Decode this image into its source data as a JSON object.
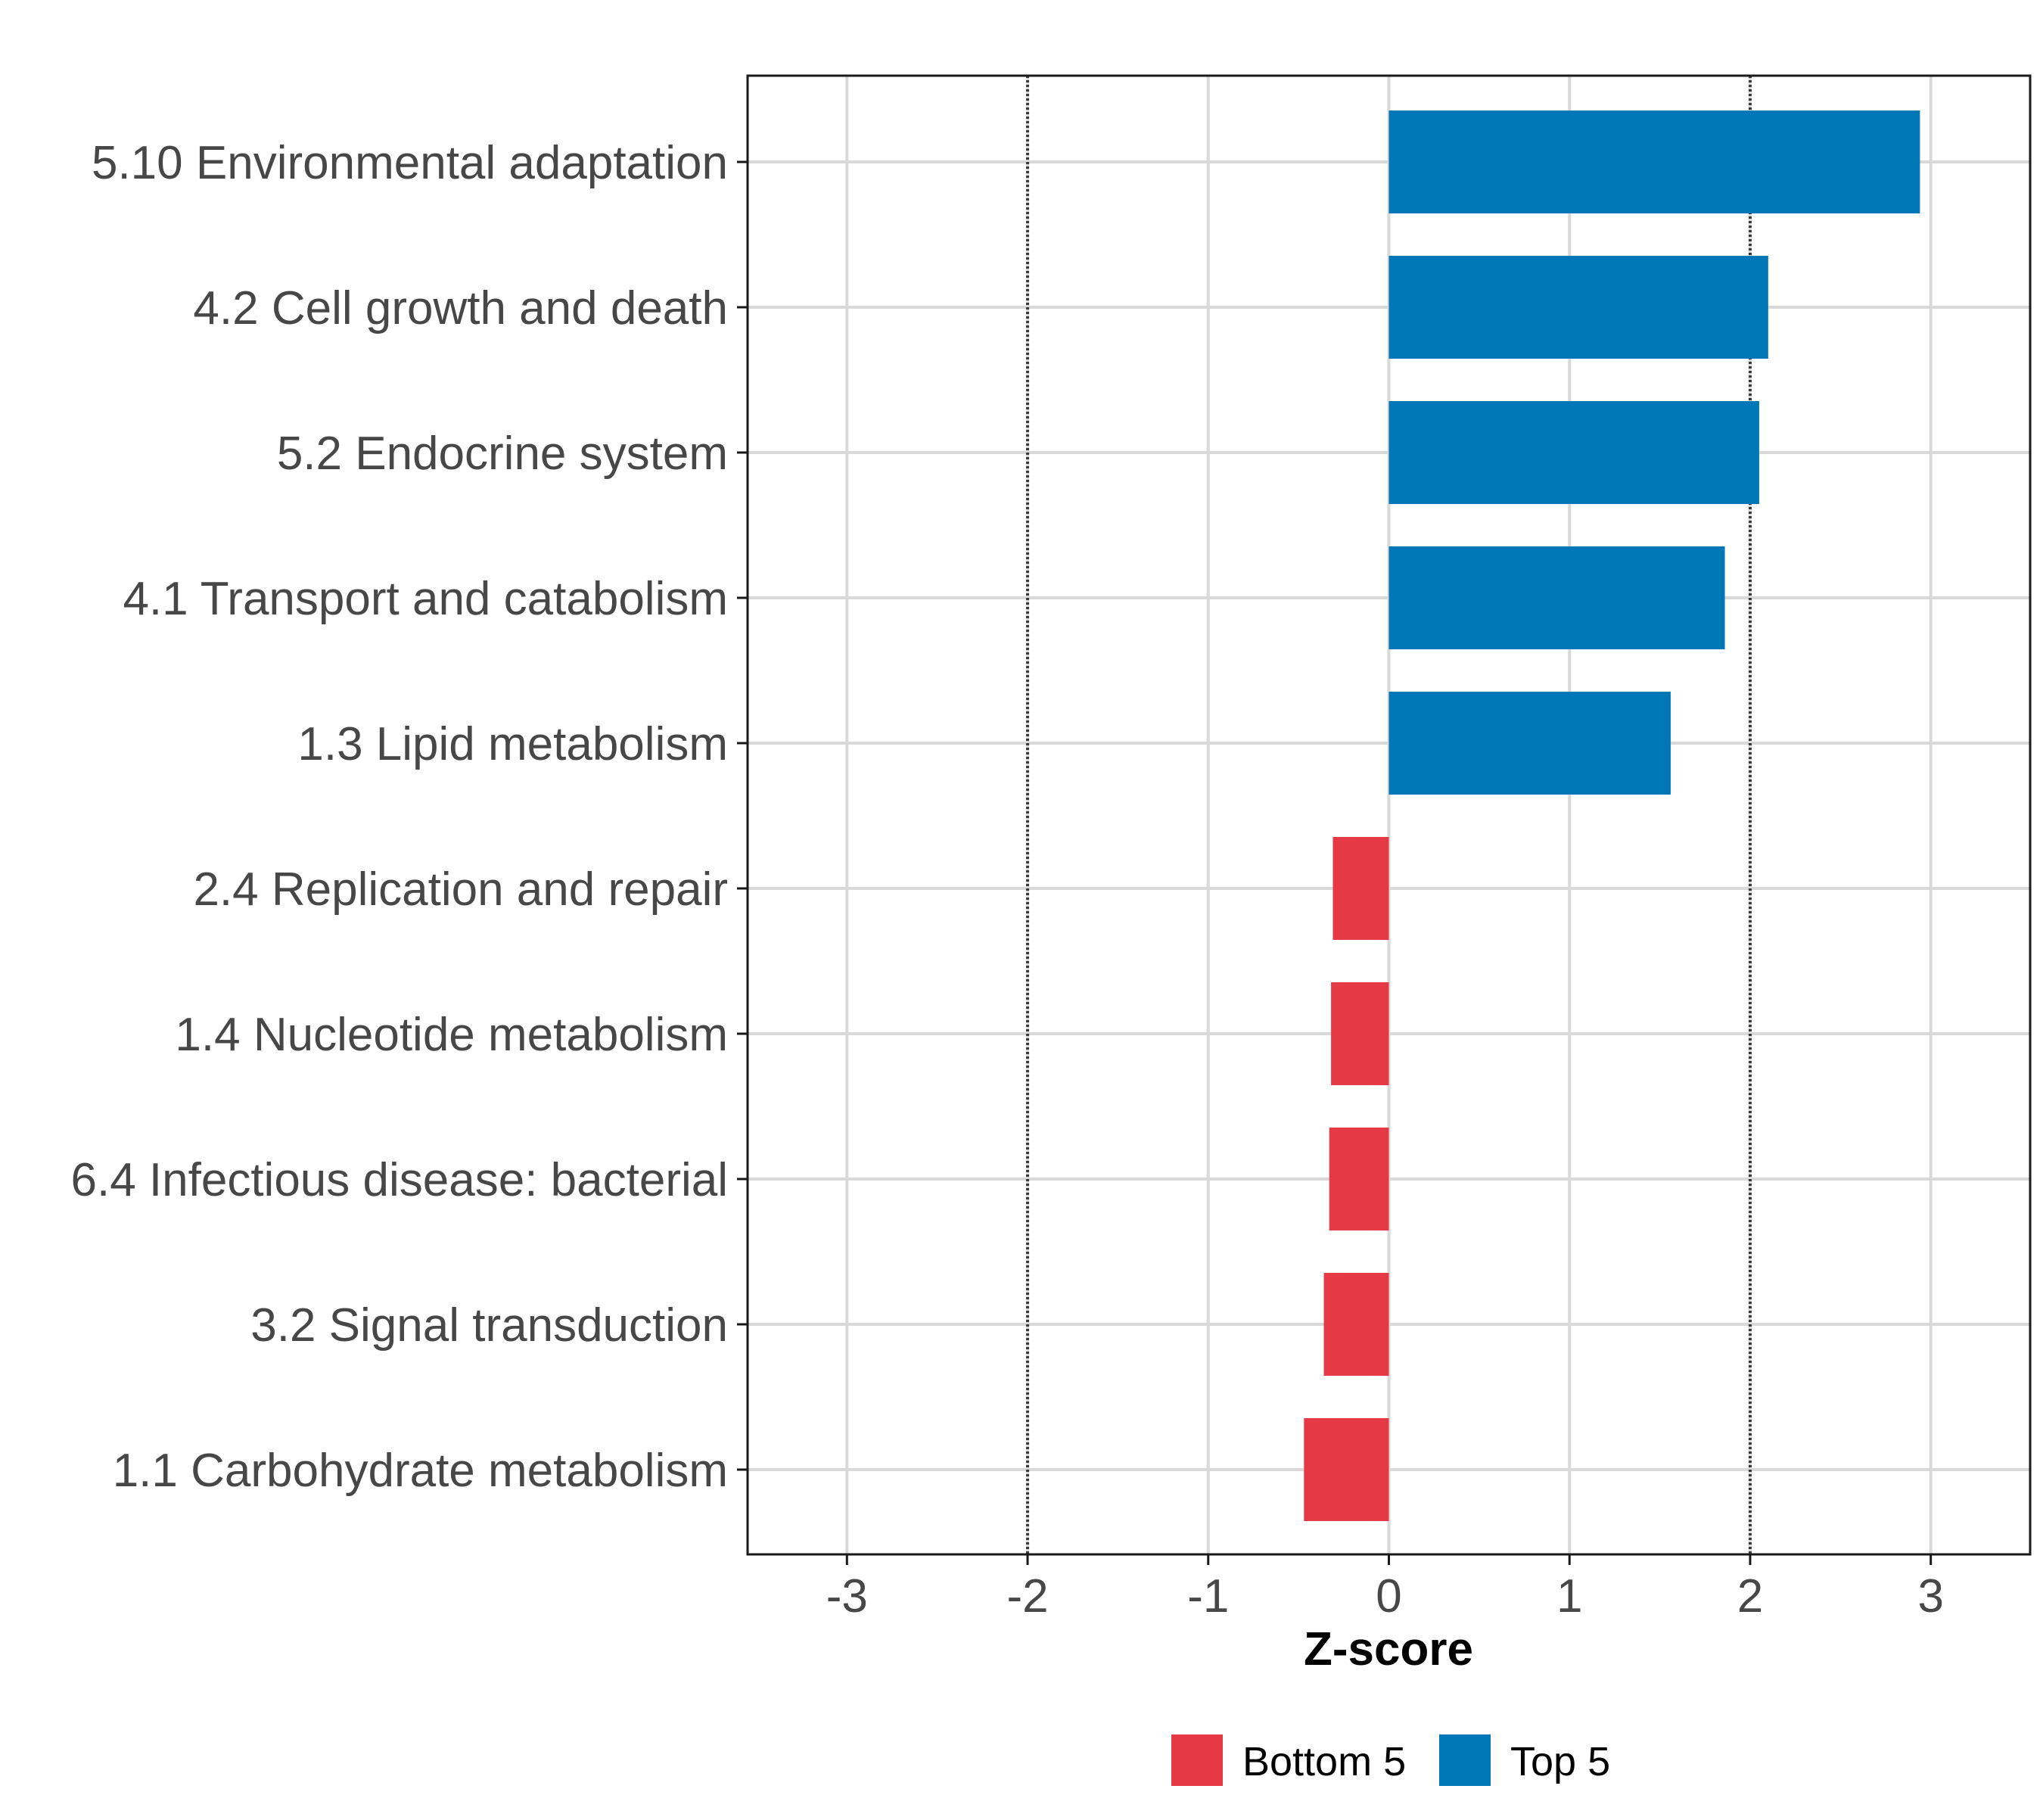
{
  "chart_data": {
    "type": "bar",
    "orientation": "horizontal",
    "xlabel": "Z-score",
    "ylabel": "",
    "xlim": [
      -3.55,
      3.55
    ],
    "xticks": [
      -3,
      -2,
      -1,
      0,
      1,
      2,
      3
    ],
    "xtick_labels": [
      "-3",
      "-2",
      "-1",
      "0",
      "1",
      "2",
      "3"
    ],
    "reference_lines": [
      -2,
      2
    ],
    "grid": true,
    "legend_position": "bottom",
    "categories": [
      "5.10 Environmental adaptation",
      "4.2 Cell growth and death",
      "5.2 Endocrine system",
      "4.1 Transport and catabolism",
      "1.3 Lipid metabolism",
      "2.4 Replication and repair",
      "1.4 Nucleotide metabolism",
      "6.4 Infectious disease: bacterial",
      "3.2 Signal transduction",
      "1.1 Carbohydrate metabolism"
    ],
    "values": [
      2.94,
      2.1,
      2.05,
      1.86,
      1.56,
      -0.31,
      -0.32,
      -0.33,
      -0.36,
      -0.47
    ],
    "groups": [
      "Top 5",
      "Top 5",
      "Top 5",
      "Top 5",
      "Top 5",
      "Bottom 5",
      "Bottom 5",
      "Bottom 5",
      "Bottom 5",
      "Bottom 5"
    ],
    "legend": [
      {
        "label": "Bottom 5",
        "color": "#e63946"
      },
      {
        "label": "Top 5",
        "color": "#0077b6"
      }
    ]
  }
}
